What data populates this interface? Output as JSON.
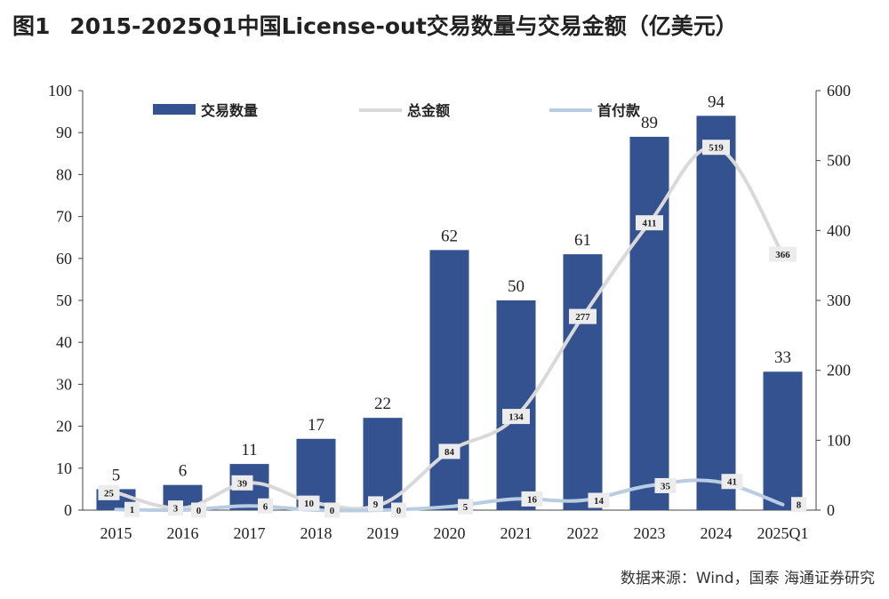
{
  "title": {
    "figure_label": "图1",
    "text": "2015-2025Q1中国License-out交易数量与交易金额（亿美元）"
  },
  "source": "数据来源：Wind，国泰 海通证券研究",
  "chart_data": {
    "type": "bar+line",
    "categories": [
      "2015",
      "2016",
      "2017",
      "2018",
      "2019",
      "2020",
      "2021",
      "2022",
      "2023",
      "2024",
      "2025Q1"
    ],
    "series": [
      {
        "name": "交易数量",
        "type": "bar",
        "axis": "left",
        "color": "#34528f",
        "values": [
          5,
          6,
          11,
          17,
          22,
          62,
          50,
          61,
          89,
          94,
          33
        ]
      },
      {
        "name": "总金额",
        "type": "line",
        "axis": "right",
        "color": "#d9d9d9",
        "values": [
          25,
          3,
          39,
          10,
          9,
          84,
          134,
          277,
          411,
          519,
          366
        ]
      },
      {
        "name": "首付款",
        "type": "line",
        "axis": "right",
        "color": "#b8cde2",
        "values": [
          1,
          0,
          6,
          0,
          0,
          5,
          16,
          14,
          35,
          41,
          8
        ]
      }
    ],
    "left_axis": {
      "min": 0,
      "max": 100,
      "ticks": [
        0,
        10,
        20,
        30,
        40,
        50,
        60,
        70,
        80,
        90,
        100
      ]
    },
    "right_axis": {
      "min": 0,
      "max": 600,
      "ticks": [
        0,
        100,
        200,
        300,
        400,
        500,
        600
      ]
    },
    "legend_position": "top-left",
    "grid": false
  }
}
